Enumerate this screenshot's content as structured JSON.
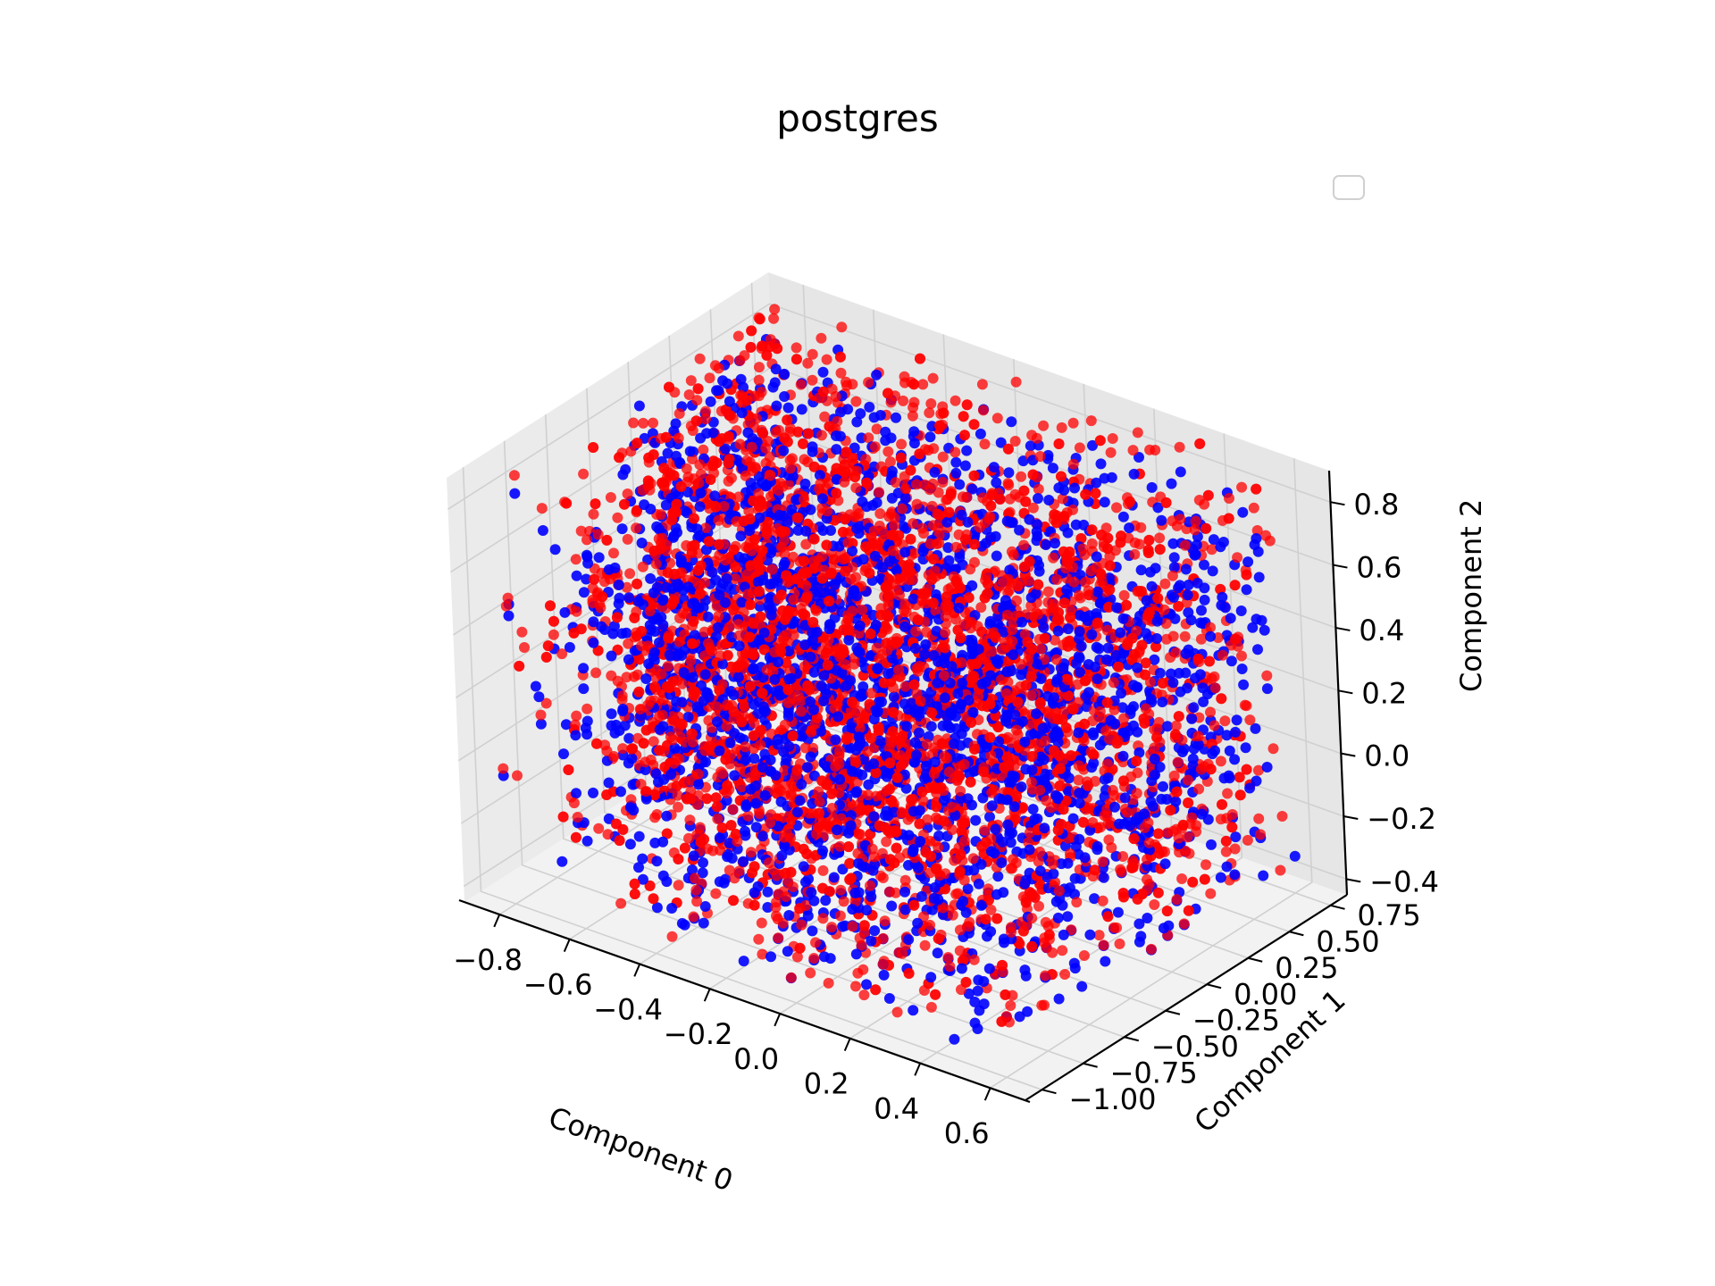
{
  "chart_data": {
    "type": "scatter",
    "projection": "3d",
    "title": "postgres",
    "xlabel": "Component 0",
    "ylabel": "Component 1",
    "zlabel": "Component 2",
    "xticks": [
      "−0.8",
      "−0.6",
      "−0.4",
      "−0.2",
      "0.0",
      "0.2",
      "0.4",
      "0.6"
    ],
    "yticks": [
      "−1.00",
      "−0.75",
      "−0.50",
      "−0.25",
      "0.00",
      "0.25",
      "0.50",
      "0.75"
    ],
    "zticks": [
      "−0.4",
      "−0.2",
      "0.0",
      "0.2",
      "0.4",
      "0.6",
      "0.8"
    ],
    "xlim": [
      -0.9,
      0.7
    ],
    "ylim": [
      -1.1,
      0.85
    ],
    "zlim": [
      -0.45,
      0.9
    ],
    "grid": true,
    "legend": "top-right",
    "colors": {
      "series_a": "#0000ff",
      "series_b": "#ff0000",
      "pane": "#f2f2f2",
      "grid": "#d0d0d0"
    },
    "series": [
      {
        "color": "#0000ff",
        "x_range": [
          -0.85,
          0.6
        ],
        "y_range": [
          -1.0,
          0.8
        ],
        "z_range": [
          -0.4,
          0.8
        ]
      },
      {
        "color": "#ff0000",
        "x_range": [
          -0.85,
          0.6
        ],
        "y_range": [
          -1.0,
          0.8
        ],
        "z_range": [
          -0.4,
          0.88
        ]
      }
    ]
  }
}
